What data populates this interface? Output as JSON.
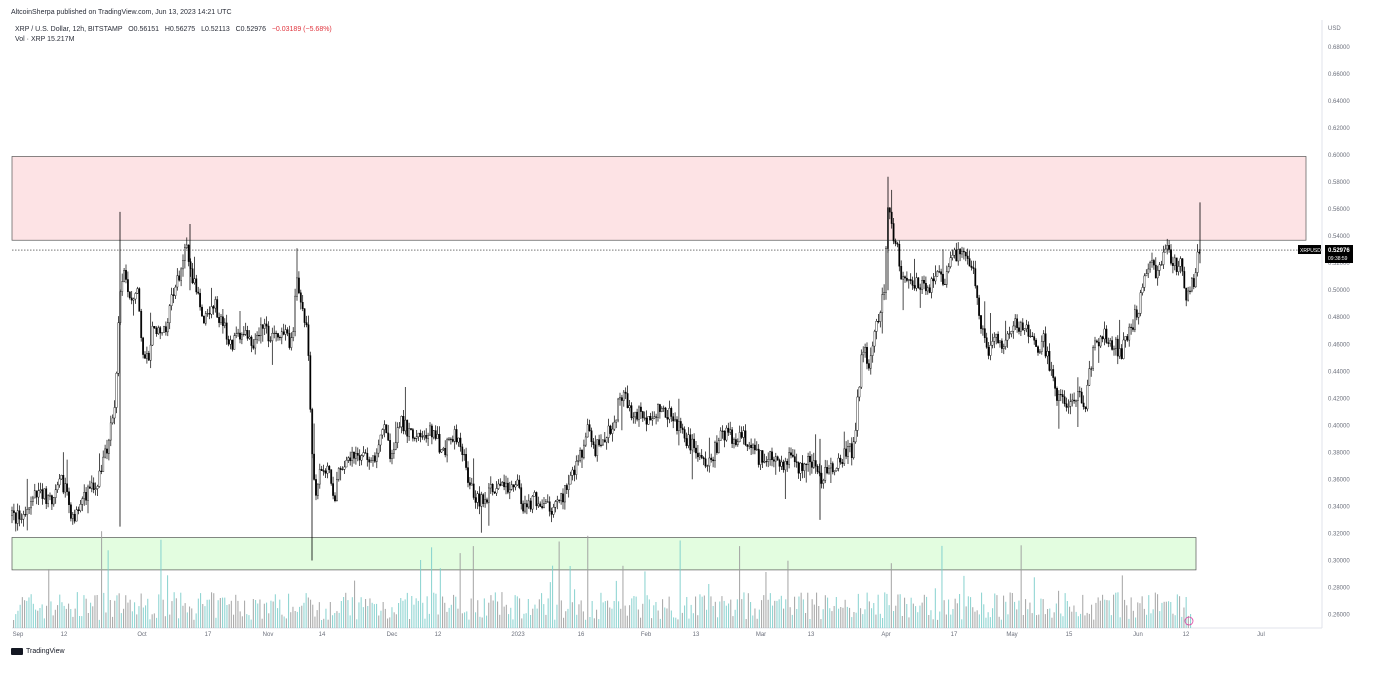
{
  "header": {
    "publisher": "AltcoinSherpa published on TradingView.com, Jun 13, 2023 14:21 UTC"
  },
  "legend": {
    "symbol": "XRP / U.S. Dollar, 12h, BITSTAMP",
    "open": "O0.56151",
    "high": "H0.56275",
    "low": "L0.52113",
    "close": "C0.52976",
    "change": "−0.03189 (−5.68%)",
    "volume": "Vol · XRP  15.217M"
  },
  "footer": {
    "brand": "TradingView"
  },
  "colors": {
    "resistance_zone": "#fde3e5",
    "support_zone": "#e3fde0",
    "volume_a": "#9e9e9e",
    "volume_b": "#7fcfcb",
    "candle": "#000000",
    "price_label_bg": "#000000"
  },
  "chart_data": {
    "type": "candlestick",
    "x_ticks": [
      "Sep",
      "12",
      "Oct",
      "17",
      "Nov",
      "14",
      "Dec",
      "12",
      "2023",
      "16",
      "Feb",
      "13",
      "Mar",
      "13",
      "Apr",
      "17",
      "May",
      "15",
      "Jun",
      "12",
      "Jul"
    ],
    "y_axis_unit": "USD",
    "y_ticks": [
      "0.68000",
      "0.66000",
      "0.64000",
      "0.62000",
      "0.60000",
      "0.58000",
      "0.56000",
      "0.54000",
      "0.52000",
      "0.50000",
      "0.48000",
      "0.46000",
      "0.44000",
      "0.42000",
      "0.40000",
      "0.38000",
      "0.36000",
      "0.34000",
      "0.32000",
      "0.30000",
      "0.28000",
      "0.26000"
    ],
    "ylim": [
      0.25,
      0.7
    ],
    "current_price_label": {
      "symbol": "XRPUSD",
      "price": "0.52976",
      "countdown": "09:38:59"
    },
    "price_path": [
      [
        0,
        0.333
      ],
      [
        10,
        0.33
      ],
      [
        22,
        0.345
      ],
      [
        30,
        0.352
      ],
      [
        40,
        0.34
      ],
      [
        50,
        0.36
      ],
      [
        62,
        0.328
      ],
      [
        72,
        0.35
      ],
      [
        82,
        0.352
      ],
      [
        90,
        0.37
      ],
      [
        98,
        0.392
      ],
      [
        103,
        0.42
      ],
      [
        108,
        0.5
      ],
      [
        112,
        0.51
      ],
      [
        118,
        0.49
      ],
      [
        125,
        0.505
      ],
      [
        132,
        0.443
      ],
      [
        138,
        0.455
      ],
      [
        142,
        0.478
      ],
      [
        148,
        0.464
      ],
      [
        155,
        0.47
      ],
      [
        160,
        0.5
      ],
      [
        165,
        0.505
      ],
      [
        170,
        0.52
      ],
      [
        175,
        0.53
      ],
      [
        180,
        0.505
      ],
      [
        185,
        0.502
      ],
      [
        190,
        0.478
      ],
      [
        196,
        0.485
      ],
      [
        202,
        0.49
      ],
      [
        208,
        0.478
      ],
      [
        214,
        0.47
      ],
      [
        220,
        0.46
      ],
      [
        226,
        0.466
      ],
      [
        232,
        0.47
      ],
      [
        238,
        0.46
      ],
      [
        244,
        0.462
      ],
      [
        250,
        0.472
      ],
      [
        256,
        0.468
      ],
      [
        262,
        0.465
      ],
      [
        268,
        0.463
      ],
      [
        274,
        0.468
      ],
      [
        280,
        0.46
      ],
      [
        284,
        0.505
      ],
      [
        288,
        0.498
      ],
      [
        292,
        0.485
      ],
      [
        296,
        0.465
      ],
      [
        300,
        0.38
      ],
      [
        304,
        0.348
      ],
      [
        308,
        0.37
      ],
      [
        312,
        0.36
      ],
      [
        318,
        0.37
      ],
      [
        322,
        0.345
      ],
      [
        326,
        0.362
      ],
      [
        330,
        0.372
      ],
      [
        336,
        0.378
      ],
      [
        342,
        0.38
      ],
      [
        348,
        0.374
      ],
      [
        354,
        0.38
      ],
      [
        360,
        0.37
      ],
      [
        366,
        0.385
      ],
      [
        372,
        0.398
      ],
      [
        378,
        0.38
      ],
      [
        384,
        0.392
      ],
      [
        390,
        0.402
      ],
      [
        396,
        0.396
      ],
      [
        402,
        0.392
      ],
      [
        408,
        0.394
      ],
      [
        414,
        0.39
      ],
      [
        420,
        0.396
      ],
      [
        426,
        0.388
      ],
      [
        432,
        0.38
      ],
      [
        438,
        0.392
      ],
      [
        444,
        0.394
      ],
      [
        450,
        0.385
      ],
      [
        456,
        0.363
      ],
      [
        462,
        0.35
      ],
      [
        468,
        0.342
      ],
      [
        474,
        0.348
      ],
      [
        480,
        0.352
      ],
      [
        486,
        0.355
      ],
      [
        492,
        0.358
      ],
      [
        498,
        0.35
      ],
      [
        504,
        0.362
      ],
      [
        510,
        0.342
      ],
      [
        516,
        0.34
      ],
      [
        522,
        0.346
      ],
      [
        528,
        0.344
      ],
      [
        534,
        0.342
      ],
      [
        540,
        0.336
      ],
      [
        546,
        0.342
      ],
      [
        552,
        0.35
      ],
      [
        558,
        0.362
      ],
      [
        564,
        0.372
      ],
      [
        570,
        0.382
      ],
      [
        576,
        0.396
      ],
      [
        582,
        0.38
      ],
      [
        588,
        0.388
      ],
      [
        594,
        0.395
      ],
      [
        600,
        0.4
      ],
      [
        606,
        0.414
      ],
      [
        612,
        0.42
      ],
      [
        618,
        0.412
      ],
      [
        624,
        0.408
      ],
      [
        630,
        0.41
      ],
      [
        636,
        0.402
      ],
      [
        642,
        0.405
      ],
      [
        648,
        0.412
      ],
      [
        654,
        0.408
      ],
      [
        660,
        0.406
      ],
      [
        666,
        0.398
      ],
      [
        672,
        0.394
      ],
      [
        678,
        0.386
      ],
      [
        684,
        0.38
      ],
      [
        690,
        0.375
      ],
      [
        696,
        0.372
      ],
      [
        702,
        0.38
      ],
      [
        708,
        0.39
      ],
      [
        714,
        0.395
      ],
      [
        720,
        0.392
      ],
      [
        726,
        0.388
      ],
      [
        732,
        0.392
      ],
      [
        738,
        0.385
      ],
      [
        744,
        0.378
      ],
      [
        750,
        0.375
      ],
      [
        756,
        0.38
      ],
      [
        762,
        0.374
      ],
      [
        768,
        0.372
      ],
      [
        774,
        0.37
      ],
      [
        780,
        0.378
      ],
      [
        786,
        0.366
      ],
      [
        792,
        0.372
      ],
      [
        798,
        0.376
      ],
      [
        804,
        0.366
      ],
      [
        810,
        0.36
      ],
      [
        816,
        0.368
      ],
      [
        822,
        0.372
      ],
      [
        828,
        0.374
      ],
      [
        834,
        0.38
      ],
      [
        840,
        0.382
      ],
      [
        844,
        0.4
      ],
      [
        848,
        0.44
      ],
      [
        852,
        0.46
      ],
      [
        856,
        0.442
      ],
      [
        860,
        0.455
      ],
      [
        864,
        0.47
      ],
      [
        868,
        0.485
      ],
      [
        872,
        0.5
      ],
      [
        876,
        0.56
      ],
      [
        880,
        0.545
      ],
      [
        884,
        0.535
      ],
      [
        888,
        0.518
      ],
      [
        892,
        0.505
      ],
      [
        896,
        0.512
      ],
      [
        900,
        0.502
      ],
      [
        906,
        0.505
      ],
      [
        912,
        0.508
      ],
      [
        918,
        0.5
      ],
      [
        924,
        0.512
      ],
      [
        930,
        0.506
      ],
      [
        936,
        0.515
      ],
      [
        942,
        0.528
      ],
      [
        948,
        0.525
      ],
      [
        954,
        0.53
      ],
      [
        960,
        0.518
      ],
      [
        966,
        0.49
      ],
      [
        972,
        0.462
      ],
      [
        978,
        0.455
      ],
      [
        984,
        0.47
      ],
      [
        990,
        0.456
      ],
      [
        996,
        0.468
      ],
      [
        1002,
        0.478
      ],
      [
        1008,
        0.474
      ],
      [
        1014,
        0.47
      ],
      [
        1020,
        0.46
      ],
      [
        1026,
        0.458
      ],
      [
        1032,
        0.462
      ],
      [
        1038,
        0.442
      ],
      [
        1044,
        0.422
      ],
      [
        1050,
        0.42
      ],
      [
        1056,
        0.418
      ],
      [
        1062,
        0.424
      ],
      [
        1068,
        0.42
      ],
      [
        1074,
        0.418
      ],
      [
        1080,
        0.452
      ],
      [
        1086,
        0.462
      ],
      [
        1092,
        0.47
      ],
      [
        1098,
        0.46
      ],
      [
        1104,
        0.458
      ],
      [
        1110,
        0.455
      ],
      [
        1116,
        0.47
      ],
      [
        1122,
        0.478
      ],
      [
        1128,
        0.49
      ],
      [
        1134,
        0.516
      ],
      [
        1140,
        0.522
      ],
      [
        1146,
        0.51
      ],
      [
        1152,
        0.53
      ],
      [
        1158,
        0.526
      ],
      [
        1164,
        0.518
      ],
      [
        1170,
        0.522
      ],
      [
        1174,
        0.49
      ],
      [
        1178,
        0.5
      ],
      [
        1182,
        0.508
      ],
      [
        1186,
        0.525
      ],
      [
        1189,
        0.53
      ]
    ],
    "zones": {
      "resistance": {
        "from": 0.537,
        "to": 0.599
      },
      "support": {
        "from": 0.293,
        "to": 0.317
      }
    },
    "current_price": 0.52976
  }
}
